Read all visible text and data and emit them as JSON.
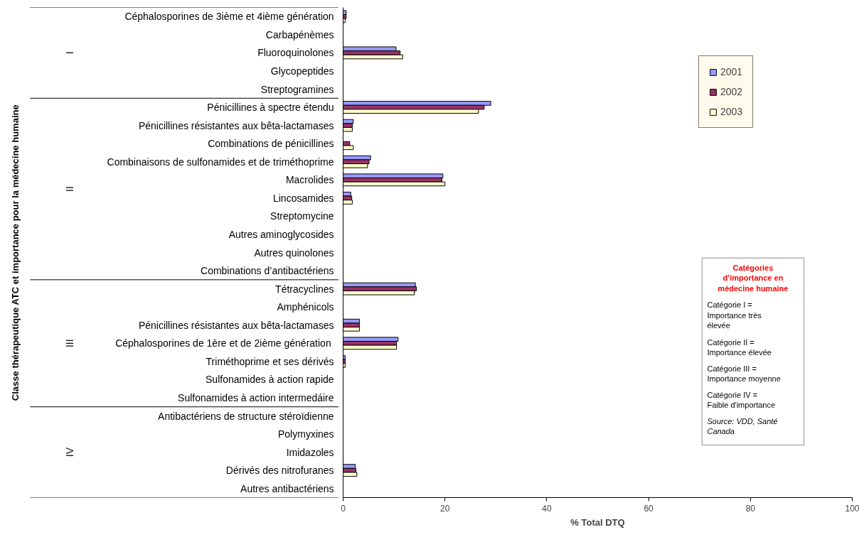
{
  "chart_data": {
    "type": "bar",
    "orientation": "horizontal",
    "xlabel": "% Total DTQ",
    "categories": [
      "Céphalosporines de 3ième et 4ième génération",
      "Carbapénèmes",
      "Fluoroquinolones",
      "Glycopeptides",
      "Streptogramines",
      "Pénicillines à spectre étendu",
      "Pénicillines résistantes aux bêta-lactamases",
      "Combinations de pénicillines",
      "Combinaisons de sulfonamides et de triméthoprime",
      "Macrolides",
      "Lincosamides",
      "Streptomycine",
      "Autres aminoglycosides",
      "Autres quinolones",
      "Combinations d’antibactériens",
      "Tétracyclines",
      "Amphénicols",
      "Pénicillines résistantes aux bêta-lactamases",
      "Céphalosporines de 1ère et de 2ième  génération",
      "Triméthoprime et ses dérivés",
      "Sulfonamides à action rapide",
      "Sulfonamides à action intermedáire",
      "Antibactériens de structure stéroïdienne",
      "Polymyxines",
      "Imidazoles",
      "Dérivés des nitrofuranes",
      "Autres antibactériens"
    ],
    "series": [
      {
        "name": "2001",
        "color": "#9999ff",
        "values": [
          0.6,
          null,
          10.4,
          null,
          null,
          29.0,
          2.0,
          null,
          5.4,
          19.6,
          1.5,
          null,
          null,
          null,
          null,
          14.2,
          null,
          3.2,
          10.8,
          0.4,
          null,
          null,
          null,
          null,
          null,
          2.4,
          null
        ]
      },
      {
        "name": "2002",
        "color": "#993366",
        "values": [
          0.6,
          null,
          11.2,
          null,
          null,
          27.7,
          1.8,
          1.3,
          5.1,
          19.4,
          1.7,
          null,
          null,
          null,
          null,
          14.4,
          null,
          3.2,
          10.5,
          0.4,
          null,
          null,
          null,
          null,
          null,
          2.5,
          null
        ]
      },
      {
        "name": "2003",
        "color": "#ffffcc",
        "values": [
          0.4,
          null,
          11.7,
          null,
          null,
          26.6,
          1.8,
          2.0,
          4.8,
          20.0,
          1.8,
          null,
          null,
          null,
          null,
          14.0,
          null,
          3.2,
          10.5,
          0.4,
          null,
          null,
          null,
          null,
          null,
          2.7,
          null
        ]
      }
    ],
    "xlim": [
      0,
      100
    ],
    "xticks": [
      0,
      20,
      40,
      60,
      80,
      100
    ],
    "grid": false,
    "legend": "top right",
    "annotations": [
      "I",
      "II",
      "III",
      "IV",
      "Catégories d’importance en médecine humaine",
      "Catégorie I = Importance très élevée",
      "Catégorie II = Importance élevée",
      "Catégorie III = Importance moyenne",
      "Catégorie IV = Faible d'importance",
      "Source: VDD, Santé Canada",
      "Classe thérapeutique ATC et importance pour la médecine humaine"
    ]
  }
}
